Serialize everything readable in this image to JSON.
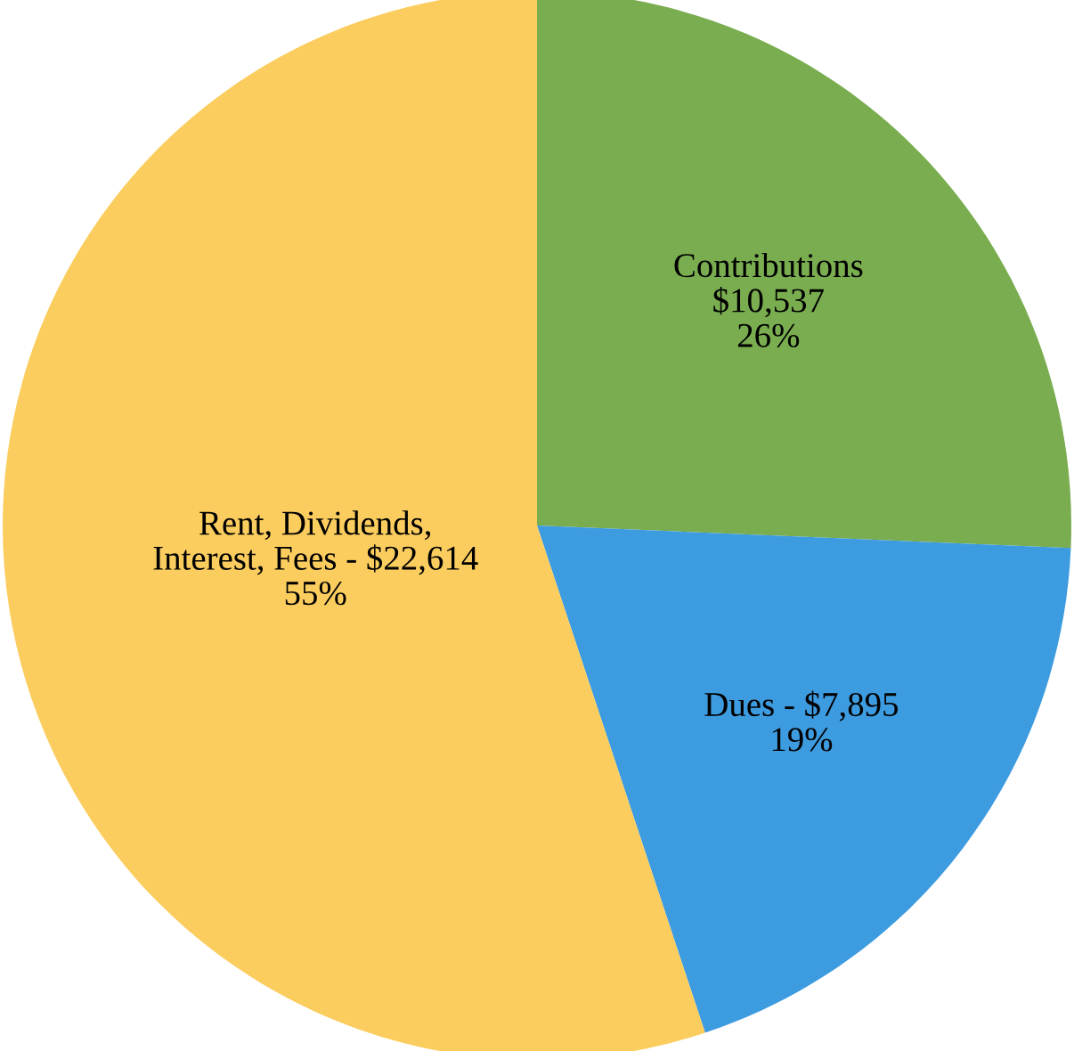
{
  "chart_data": {
    "type": "pie",
    "categories": [
      "Contributions",
      "Dues -",
      "Rent, Dividends,\nInterest, Fees -"
    ],
    "values": [
      10537,
      7895,
      22614
    ],
    "value_labels": [
      "$10,537\n26%",
      "$7,895\n19%",
      "$22,614\n55%"
    ],
    "colors": [
      "#79ad4f",
      "#3d9be0",
      "#fbcd5e"
    ]
  }
}
